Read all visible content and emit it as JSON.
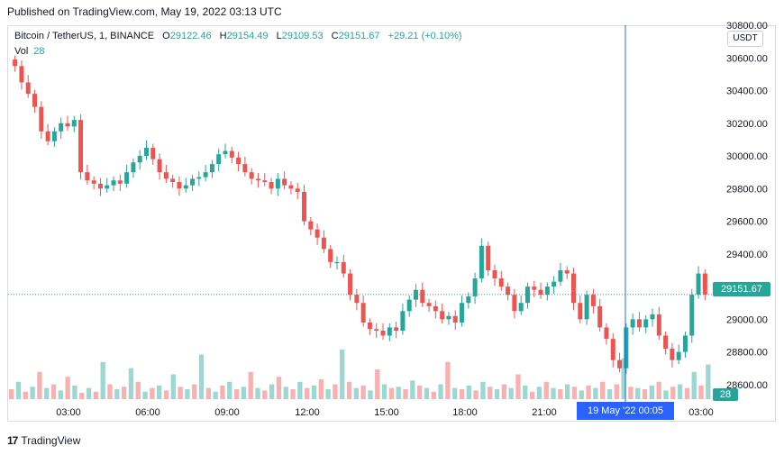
{
  "published": "Published on TradingView.com, May 19, 2022 03:13 UTC",
  "legend": {
    "symbol": "Bitcoin / TetherUS, 1, BINANCE",
    "o_label": "O",
    "o_val": "29122.46",
    "h_label": "H",
    "h_val": "29154.49",
    "l_label": "L",
    "l_val": "29109.53",
    "c_label": "C",
    "c_val": "29151.67",
    "change": "+29.21 (+0.10%)",
    "vol_label": "Vol",
    "vol_val": "28"
  },
  "currency": "USDT",
  "price_tag": "29151.67",
  "vol_tag": "28",
  "crosshair_label": "19 May '22   00:05",
  "footer": {
    "brand": "TradingView",
    "logo_text": "17"
  },
  "colors": {
    "up": "#26a69a",
    "down": "#ef5350",
    "vol_up": "#26a69a",
    "vol_down": "#ef5350",
    "crosshair": "#2962ff"
  },
  "chart_data": {
    "type": "candlestick",
    "title": "Bitcoin / TetherUS, 1, BINANCE",
    "ylim": [
      28500,
      30800
    ],
    "y_ticks": [
      "30800.00",
      "30600.00",
      "30400.00",
      "30200.00",
      "30000.00",
      "29800.00",
      "29600.00",
      "29400.00",
      "29200.00",
      "29000.00",
      "28800.00",
      "28600.00"
    ],
    "x_ticks": [
      "03:00",
      "06:00",
      "09:00",
      "12:00",
      "15:00",
      "18:00",
      "21:00",
      "19 May '22",
      "03:00"
    ],
    "last_price": 29151.67,
    "series": [
      {
        "name": "price_path",
        "values": [
          30550,
          30450,
          30380,
          30300,
          30150,
          30090,
          30150,
          30200,
          30180,
          30220,
          29900,
          29850,
          29830,
          29800,
          29820,
          29850,
          29830,
          29900,
          29960,
          30000,
          30050,
          29980,
          29900,
          29860,
          29840,
          29800,
          29820,
          29860,
          29870,
          29900,
          29950,
          30010,
          30030,
          29990,
          29950,
          29900,
          29860,
          29850,
          29840,
          29800,
          29860,
          29820,
          29800,
          29780,
          29600,
          29550,
          29500,
          29430,
          29350,
          29350,
          29280,
          29150,
          29100,
          28980,
          28940,
          28930,
          28900,
          28950,
          28930,
          29050,
          29120,
          29180,
          29100,
          29080,
          29050,
          29000,
          29020,
          28980,
          29100,
          29140,
          29250,
          29450,
          29300,
          29250,
          29200,
          29150,
          29050,
          29100,
          29200,
          29180,
          29150,
          29200,
          29230,
          29300,
          29280,
          29100,
          29000,
          29150,
          29080,
          28950,
          28880,
          28750,
          28700,
          28950,
          29000,
          28950,
          29000,
          29030,
          28900,
          28820,
          28750,
          28800,
          28900,
          29150,
          29280,
          29151
        ]
      }
    ],
    "volume": [
      8,
      14,
      6,
      10,
      22,
      9,
      12,
      7,
      18,
      11,
      5,
      9,
      6,
      30,
      12,
      8,
      10,
      25,
      14,
      6,
      9,
      11,
      7,
      20,
      10,
      8,
      12,
      36,
      9,
      6,
      11,
      14,
      8,
      10,
      22,
      9,
      7,
      12,
      18,
      10,
      8,
      14,
      9,
      11,
      16,
      8,
      12,
      40,
      14,
      9,
      11,
      7,
      24,
      12,
      9,
      10,
      8,
      15,
      11,
      9,
      6,
      12,
      30,
      9,
      8,
      11,
      7,
      14,
      10,
      8,
      12,
      9,
      20,
      11,
      6,
      10,
      14,
      9,
      8,
      12,
      10,
      7,
      11,
      9,
      14,
      8,
      12,
      33,
      10,
      9,
      8,
      11,
      14,
      7,
      10,
      12,
      9,
      22,
      11,
      28
    ]
  }
}
